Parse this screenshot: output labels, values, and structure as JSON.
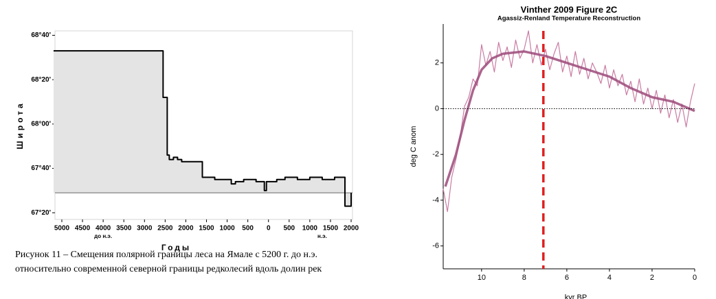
{
  "chart_data": [
    {
      "type": "line",
      "step": "post",
      "xlabel": "Годы",
      "ylabel": "Широта",
      "x": [
        -5200,
        -2550,
        -2450,
        -2400,
        -2300,
        -2200,
        -2100,
        -2000,
        -1600,
        -1500,
        -1300,
        -900,
        -800,
        -600,
        -300,
        -100,
        -50,
        0,
        200,
        400,
        700,
        1000,
        1300,
        1600,
        1850,
        1900,
        2000
      ],
      "values": [
        68.55,
        68.2,
        67.767,
        67.733,
        67.75,
        67.733,
        67.717,
        67.717,
        67.6,
        67.6,
        67.583,
        67.55,
        67.567,
        67.583,
        67.567,
        67.5,
        67.567,
        67.567,
        67.583,
        67.6,
        67.583,
        67.6,
        67.583,
        67.6,
        67.383,
        67.383,
        67.483
      ],
      "color": "#000000",
      "fill": "#e4e4e4",
      "reference_y": 67.483,
      "xlim": [
        -5166,
        2033
      ],
      "ylim": [
        67.283,
        68.7
      ],
      "xticks": [
        {
          "value": -5000,
          "label": "5000"
        },
        {
          "value": -4500,
          "label": "4500"
        },
        {
          "value": -4000,
          "label": "4000"
        },
        {
          "value": -3500,
          "label": "3500"
        },
        {
          "value": -3000,
          "label": "3000"
        },
        {
          "value": -2500,
          "label": "2500"
        },
        {
          "value": -2000,
          "label": "2000"
        },
        {
          "value": -1500,
          "label": "1500"
        },
        {
          "value": -1000,
          "label": "1000"
        },
        {
          "value": -500,
          "label": "500"
        },
        0,
        500,
        1000,
        1500,
        2000
      ],
      "yticks": [
        {
          "value": 67.3333,
          "label": "67°20'"
        },
        {
          "value": 67.6667,
          "label": "67°40'"
        },
        {
          "value": 68,
          "label": "68°00'"
        },
        {
          "value": 68.3333,
          "label": "68°20'"
        },
        {
          "value": 68.6667,
          "label": "68°40'"
        }
      ],
      "annotations": [
        {
          "text": "до н.э.",
          "x": -4000
        },
        {
          "text": "н.э.",
          "x": 1300
        }
      ],
      "caption": [
        "Рисунок 11 – Смещения полярной границы леса на Ямале с 5200 г. до н.э.",
        "относительно современной северной границы редколесий вдоль долин рек"
      ]
    },
    {
      "type": "line",
      "title": "Vinther 2009 Figure 2C",
      "subtitle": "Agassiz-Renland Temperature Reconstruction",
      "xlabel": "kyr BP",
      "ylabel": "deg C anom",
      "series": [
        {
          "color": "#c97ba2",
          "width": 1.2,
          "x": [
            11.8,
            11.6,
            11.4,
            11.2,
            11.0,
            10.8,
            10.6,
            10.4,
            10.2,
            10.0,
            9.8,
            9.6,
            9.4,
            9.2,
            9.0,
            8.8,
            8.6,
            8.4,
            8.2,
            8.0,
            7.8,
            7.6,
            7.4,
            7.2,
            7.0,
            6.8,
            6.6,
            6.4,
            6.2,
            6.0,
            5.8,
            5.6,
            5.4,
            5.2,
            5.0,
            4.8,
            4.6,
            4.4,
            4.2,
            4.0,
            3.8,
            3.6,
            3.4,
            3.2,
            3.0,
            2.8,
            2.6,
            2.4,
            2.2,
            2.0,
            1.8,
            1.6,
            1.4,
            1.2,
            1.0,
            0.8,
            0.6,
            0.4,
            0.2,
            0.0
          ],
          "values": [
            -3.5,
            -4.5,
            -3.0,
            -2.2,
            -1.2,
            0.1,
            0.5,
            1.3,
            1.0,
            2.8,
            1.9,
            2.5,
            1.6,
            2.9,
            2.1,
            2.7,
            1.8,
            3.0,
            2.2,
            2.6,
            3.4,
            2.0,
            2.8,
            1.9,
            2.6,
            1.7,
            2.4,
            2.9,
            1.6,
            2.3,
            1.4,
            2.5,
            1.5,
            2.2,
            1.3,
            2.0,
            1.6,
            1.1,
            1.9,
            0.9,
            1.7,
            1.0,
            1.5,
            0.6,
            1.2,
            0.3,
            1.3,
            0.2,
            0.9,
            0.0,
            0.8,
            -0.2,
            0.6,
            -0.4,
            0.4,
            -0.6,
            0.2,
            -0.8,
            0.3,
            1.1
          ]
        },
        {
          "color": "#9c4a7a",
          "width": 3.5,
          "x": [
            11.7,
            11.2,
            10.8,
            10.4,
            10.0,
            9.5,
            9.0,
            8.0,
            7.0,
            6.0,
            5.0,
            4.0,
            3.0,
            2.0,
            1.0,
            0.0
          ],
          "values": [
            -3.4,
            -2.0,
            -0.5,
            0.8,
            1.7,
            2.2,
            2.4,
            2.5,
            2.3,
            2.0,
            1.7,
            1.4,
            0.9,
            0.5,
            0.3,
            -0.1
          ]
        }
      ],
      "hline": 0,
      "vline": 7.1,
      "vline_color": "#e02020",
      "xlim": [
        11.8,
        0
      ],
      "ylim": [
        -7,
        3.7
      ],
      "xticks": [
        10,
        8,
        6,
        4,
        2,
        0
      ],
      "yticks": [
        -6,
        -4,
        -2,
        0,
        2
      ]
    }
  ]
}
